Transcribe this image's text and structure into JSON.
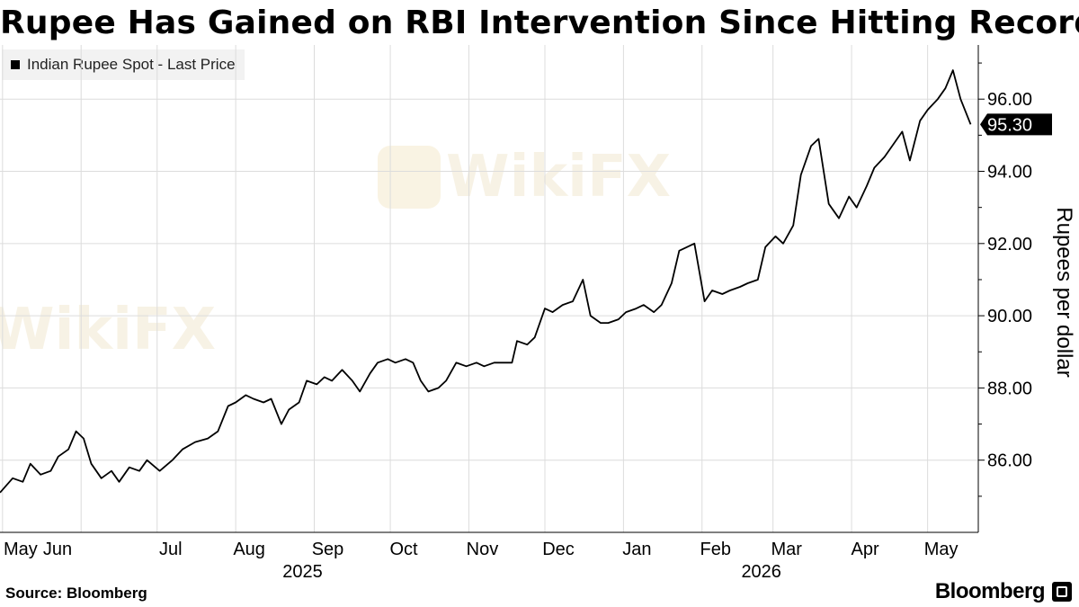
{
  "page": {
    "title": "Rupee Has Gained on RBI Intervention Since Hitting Record Low",
    "source": "Source: Bloomberg",
    "brand": "Bloomberg",
    "watermark": "WikiFX"
  },
  "chart_data": {
    "type": "line",
    "title": "Rupee Has Gained on RBI Intervention Since Hitting Record Low",
    "ylabel": "Rupees per dollar",
    "xlabel": "",
    "legend": {
      "position": "top-left",
      "entries": [
        "Indian Rupee Spot - Last Price"
      ]
    },
    "ylim": [
      84.0,
      97.5
    ],
    "xlim": [
      "2025-04-30",
      "2026-05-21"
    ],
    "grid": true,
    "y_ticks": [
      86,
      88,
      90,
      92,
      94,
      96
    ],
    "y_tick_labels": [
      "86.00",
      "88.00",
      "90.00",
      "92.00",
      "94.00",
      "96.00"
    ],
    "x_month_labels": [
      {
        "date": "2025-05-01",
        "label": "May"
      },
      {
        "date": "2025-06-01",
        "label": "Jun"
      },
      {
        "date": "2025-07-01",
        "label": "Jul"
      },
      {
        "date": "2025-08-01",
        "label": "Aug"
      },
      {
        "date": "2025-09-01",
        "label": "Sep"
      },
      {
        "date": "2025-10-01",
        "label": "Oct"
      },
      {
        "date": "2025-11-01",
        "label": "Nov"
      },
      {
        "date": "2025-12-01",
        "label": "Dec"
      },
      {
        "date": "2026-01-01",
        "label": "Jan"
      },
      {
        "date": "2026-02-01",
        "label": "Feb"
      },
      {
        "date": "2026-03-01",
        "label": "Mar"
      },
      {
        "date": "2026-04-01",
        "label": "Apr"
      },
      {
        "date": "2026-05-01",
        "label": "May"
      }
    ],
    "x_year_labels": [
      {
        "date": "2025-09-01",
        "label": "2025"
      },
      {
        "date": "2026-03-01",
        "label": "2026"
      }
    ],
    "last_value_label": "95.30",
    "series": [
      {
        "name": "Indian Rupee Spot - Last Price",
        "color": "#000000",
        "points": [
          [
            "2025-04-30",
            85.1
          ],
          [
            "2025-05-05",
            85.5
          ],
          [
            "2025-05-09",
            85.4
          ],
          [
            "2025-05-12",
            85.9
          ],
          [
            "2025-05-16",
            85.6
          ],
          [
            "2025-05-20",
            85.7
          ],
          [
            "2025-05-23",
            86.1
          ],
          [
            "2025-05-27",
            86.3
          ],
          [
            "2025-05-30",
            86.8
          ],
          [
            "2025-06-02",
            86.6
          ],
          [
            "2025-06-05",
            85.9
          ],
          [
            "2025-06-09",
            85.5
          ],
          [
            "2025-06-13",
            85.7
          ],
          [
            "2025-06-16",
            85.4
          ],
          [
            "2025-06-20",
            85.8
          ],
          [
            "2025-06-24",
            85.7
          ],
          [
            "2025-06-27",
            86.0
          ],
          [
            "2025-07-02",
            85.7
          ],
          [
            "2025-07-07",
            86.0
          ],
          [
            "2025-07-11",
            86.3
          ],
          [
            "2025-07-16",
            86.5
          ],
          [
            "2025-07-21",
            86.6
          ],
          [
            "2025-07-25",
            86.8
          ],
          [
            "2025-07-29",
            87.5
          ],
          [
            "2025-08-01",
            87.6
          ],
          [
            "2025-08-05",
            87.8
          ],
          [
            "2025-08-08",
            87.7
          ],
          [
            "2025-08-12",
            87.6
          ],
          [
            "2025-08-15",
            87.7
          ],
          [
            "2025-08-19",
            87.0
          ],
          [
            "2025-08-22",
            87.4
          ],
          [
            "2025-08-26",
            87.6
          ],
          [
            "2025-08-29",
            88.2
          ],
          [
            "2025-09-02",
            88.1
          ],
          [
            "2025-09-05",
            88.3
          ],
          [
            "2025-09-08",
            88.2
          ],
          [
            "2025-09-12",
            88.5
          ],
          [
            "2025-09-16",
            88.2
          ],
          [
            "2025-09-19",
            87.9
          ],
          [
            "2025-09-23",
            88.4
          ],
          [
            "2025-09-26",
            88.7
          ],
          [
            "2025-09-30",
            88.8
          ],
          [
            "2025-10-03",
            88.7
          ],
          [
            "2025-10-07",
            88.8
          ],
          [
            "2025-10-10",
            88.7
          ],
          [
            "2025-10-13",
            88.2
          ],
          [
            "2025-10-16",
            87.9
          ],
          [
            "2025-10-20",
            88.0
          ],
          [
            "2025-10-23",
            88.2
          ],
          [
            "2025-10-27",
            88.7
          ],
          [
            "2025-10-31",
            88.6
          ],
          [
            "2025-11-04",
            88.7
          ],
          [
            "2025-11-07",
            88.6
          ],
          [
            "2025-11-11",
            88.7
          ],
          [
            "2025-11-14",
            88.7
          ],
          [
            "2025-11-18",
            88.7
          ],
          [
            "2025-11-20",
            89.3
          ],
          [
            "2025-11-24",
            89.2
          ],
          [
            "2025-11-27",
            89.4
          ],
          [
            "2025-12-01",
            90.2
          ],
          [
            "2025-12-04",
            90.1
          ],
          [
            "2025-12-08",
            90.3
          ],
          [
            "2025-12-12",
            90.4
          ],
          [
            "2025-12-16",
            91.0
          ],
          [
            "2025-12-19",
            90.0
          ],
          [
            "2025-12-23",
            89.8
          ],
          [
            "2025-12-26",
            89.8
          ],
          [
            "2025-12-30",
            89.9
          ],
          [
            "2026-01-02",
            90.1
          ],
          [
            "2026-01-06",
            90.2
          ],
          [
            "2026-01-09",
            90.3
          ],
          [
            "2026-01-13",
            90.1
          ],
          [
            "2026-01-16",
            90.3
          ],
          [
            "2026-01-20",
            90.9
          ],
          [
            "2026-01-23",
            91.8
          ],
          [
            "2026-01-26",
            91.9
          ],
          [
            "2026-01-29",
            92.0
          ],
          [
            "2026-02-02",
            90.4
          ],
          [
            "2026-02-05",
            90.7
          ],
          [
            "2026-02-09",
            90.6
          ],
          [
            "2026-02-12",
            90.7
          ],
          [
            "2026-02-16",
            90.8
          ],
          [
            "2026-02-19",
            90.9
          ],
          [
            "2026-02-23",
            91.0
          ],
          [
            "2026-02-26",
            91.9
          ],
          [
            "2026-03-02",
            92.2
          ],
          [
            "2026-03-05",
            92.0
          ],
          [
            "2026-03-09",
            92.5
          ],
          [
            "2026-03-12",
            93.9
          ],
          [
            "2026-03-16",
            94.7
          ],
          [
            "2026-03-19",
            94.9
          ],
          [
            "2026-03-23",
            93.1
          ],
          [
            "2026-03-27",
            92.7
          ],
          [
            "2026-03-31",
            93.3
          ],
          [
            "2026-04-03",
            93.0
          ],
          [
            "2026-04-07",
            93.6
          ],
          [
            "2026-04-10",
            94.1
          ],
          [
            "2026-04-14",
            94.4
          ],
          [
            "2026-04-17",
            94.7
          ],
          [
            "2026-04-21",
            95.1
          ],
          [
            "2026-04-24",
            94.3
          ],
          [
            "2026-04-28",
            95.4
          ],
          [
            "2026-05-01",
            95.7
          ],
          [
            "2026-05-05",
            96.0
          ],
          [
            "2026-05-08",
            96.3
          ],
          [
            "2026-05-11",
            96.8
          ],
          [
            "2026-05-14",
            96.0
          ],
          [
            "2026-05-18",
            95.3
          ]
        ]
      }
    ]
  }
}
